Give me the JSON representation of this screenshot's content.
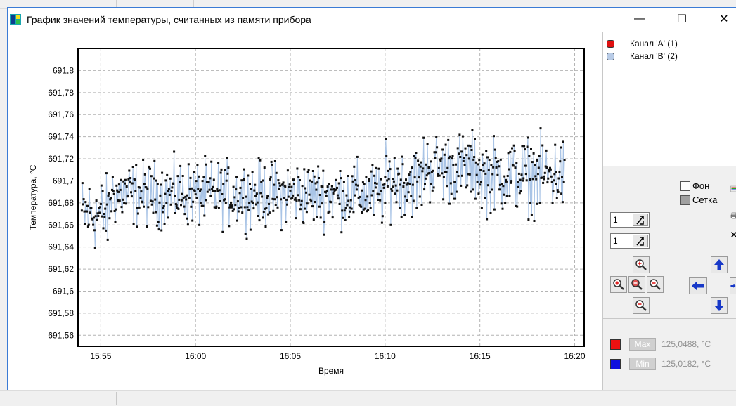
{
  "window": {
    "title": "График значений температуры, считанных из памяти прибора",
    "minimize_glyph": "—",
    "maximize_glyph": "☐",
    "close_glyph": "✕"
  },
  "legend": {
    "items": [
      {
        "label": "Канал 'A' (1)",
        "color": "#e01010"
      },
      {
        "label": "Канал 'B' (2)",
        "color": "#b8cbe6"
      }
    ]
  },
  "options": {
    "background_label": "Фон",
    "background_checked": false,
    "grid_label": "Сетка",
    "grid_checked": true
  },
  "spinners": [
    {
      "value": "1"
    },
    {
      "value": "1"
    }
  ],
  "icons": {
    "palette": "palette-icon",
    "print": "printer-icon",
    "clear": "close-icon",
    "zoom_in": "zoom-in-icon",
    "zoom_in_x": "zoom-in-x-icon",
    "zoom_reset": "zoom-reset-icon",
    "zoom_out_x": "zoom-out-x-icon",
    "zoom_out": "zoom-out-icon",
    "pan_up": "arrow-up-icon",
    "pan_left": "arrow-left-icon",
    "pan_right": "arrow-right-icon",
    "pan_down": "arrow-down-icon",
    "app": "thermometer-app-icon"
  },
  "minmax": {
    "max": {
      "label": "Мах",
      "value": "125,0488, °C",
      "color": "#ee1111"
    },
    "min": {
      "label": "Min",
      "value": "125,0182, °C",
      "color": "#1010dd"
    }
  },
  "chart_data": {
    "type": "line",
    "ylabel": "Температура, °С",
    "xlabel": "Время",
    "ylim": [
      691.55,
      691.82
    ],
    "y_ticks": [
      "691,56",
      "691,58",
      "691,6",
      "691,62",
      "691,64",
      "691,66",
      "691,68",
      "691,7",
      "691,72",
      "691,74",
      "691,76",
      "691,78",
      "691,8"
    ],
    "x_ticks": [
      "15:55",
      "16:00",
      "16:05",
      "16:10",
      "16:15",
      "16:20"
    ],
    "xlim_minutes_from_1554": [
      -0.2,
      26.5
    ],
    "grid": true,
    "series": [
      {
        "name": "Канал 'B' (2)",
        "line_color": "#a9c4e6",
        "marker_color": "#111111",
        "x_range": [
          "15:54",
          "16:19:30"
        ],
        "segments": [
          {
            "from": "15:54",
            "to": "15:55:30",
            "mean": 691.67,
            "spread": 0.03
          },
          {
            "from": "15:55:30",
            "to": "16:10",
            "mean": 691.688,
            "spread": 0.026
          },
          {
            "from": "16:10",
            "to": "16:12",
            "mean": 691.7,
            "spread": 0.028
          },
          {
            "from": "16:12",
            "to": "16:15",
            "mean": 691.712,
            "spread": 0.028
          },
          {
            "from": "16:15",
            "to": "16:19:30",
            "mean": 691.705,
            "spread": 0.03
          }
        ],
        "observed_max": 691.754,
        "observed_min": 691.626
      }
    ]
  }
}
